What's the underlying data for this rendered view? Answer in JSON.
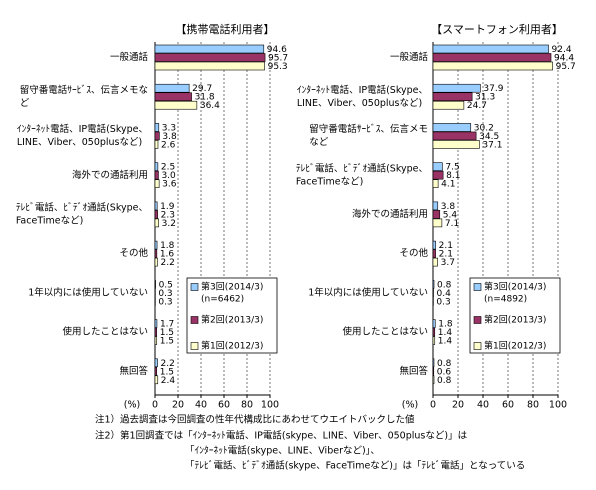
{
  "chart_data": [
    {
      "type": "bar",
      "orientation": "horizontal",
      "title": "【携帯電話利用者】",
      "categories": [
        [
          "一般通話"
        ],
        [
          "留守番電話ｻｰﾋﾞｽ、伝言メモな",
          "ど"
        ],
        [
          "ｲﾝﾀｰﾈｯﾄ電話、IP電話(Skype、",
          "LINE、Viber、050plusなど)"
        ],
        [
          "海外での通話利用"
        ],
        [
          "ﾃﾚﾋﾞ電話、ﾋﾞﾃﾞｵ通話(Skype、",
          "FaceTimeなど)"
        ],
        [
          "その他"
        ],
        [
          "1年以内には使用していない"
        ],
        [
          "使用したことはない"
        ],
        [
          "無回答"
        ]
      ],
      "series": [
        {
          "name": "第3回(2014/3)",
          "color": "#99ccff",
          "values": [
            94.6,
            29.7,
            3.3,
            2.5,
            1.9,
            1.8,
            0.5,
            1.7,
            2.2
          ],
          "value_labels": [
            "94.6",
            "29.7",
            "3.3",
            "2.5",
            "1.9",
            "1.8",
            "0.5",
            "1.7",
            "2.2"
          ]
        },
        {
          "name": "第2回(2013/3)",
          "color": "#993366",
          "values": [
            95.7,
            31.8,
            3.8,
            3.0,
            2.3,
            1.6,
            0.3,
            1.5,
            1.5
          ],
          "value_labels": [
            "95.7",
            "31.8",
            "3.8",
            "3.0",
            "2.3",
            "1.6",
            "0.3",
            "1.5",
            "1.5"
          ]
        },
        {
          "name": "第1回(2012/3)",
          "color": "#ffffcc",
          "values": [
            95.3,
            36.4,
            2.6,
            3.6,
            3.2,
            2.2,
            0.3,
            1.5,
            2.4
          ],
          "value_labels": [
            "95.3",
            "36.4",
            "2.6",
            "3.6",
            "3.2",
            "2.2",
            "0.3",
            "1.5",
            "2.4"
          ]
        }
      ],
      "n_label": "(n=6462)",
      "axis_label": "(%)",
      "xlim": [
        0,
        100
      ],
      "xticks": [
        0,
        20,
        40,
        60,
        80,
        100
      ],
      "grid": true
    },
    {
      "type": "bar",
      "orientation": "horizontal",
      "title": "【スマートフォン利用者】",
      "categories": [
        [
          "一般通話"
        ],
        [
          "ｲﾝﾀｰﾈｯﾄ電話、IP電話(Skype、",
          "LINE、Viber、050plusなど)"
        ],
        [
          "留守番電話ｻｰﾋﾞｽ、伝言メモ",
          "など"
        ],
        [
          "ﾃﾚﾋﾞ電話、ﾋﾞﾃﾞｵ通話(Skype、",
          "FaceTimeなど)"
        ],
        [
          "海外での通話利用"
        ],
        [
          "その他"
        ],
        [
          "1年以内には使用していない"
        ],
        [
          "使用したことはない"
        ],
        [
          "無回答"
        ]
      ],
      "series": [
        {
          "name": "第3回(2014/3)",
          "color": "#99ccff",
          "values": [
            92.4,
            37.9,
            30.2,
            7.5,
            3.8,
            2.1,
            0.8,
            1.8,
            0.8
          ],
          "value_labels": [
            "92.4",
            "37.9",
            "30.2",
            "7.5",
            "3.8",
            "2.1",
            "0.8",
            "1.8",
            "0.8"
          ]
        },
        {
          "name": "第2回(2013/3)",
          "color": "#993366",
          "values": [
            94.4,
            31.3,
            34.5,
            8.1,
            5.4,
            2.1,
            0.4,
            1.4,
            0.6
          ],
          "value_labels": [
            "94.4",
            "31.3",
            "34.5",
            "8.1",
            "5.4",
            "2.1",
            "0.4",
            "1.4",
            "0.6"
          ]
        },
        {
          "name": "第1回(2012/3)",
          "color": "#ffffcc",
          "values": [
            95.7,
            24.7,
            37.1,
            4.1,
            7.1,
            3.7,
            0.3,
            1.4,
            0.8
          ],
          "value_labels": [
            "95.7",
            "24.7",
            "37.1",
            "4.1",
            "7.1",
            "3.7",
            "0.3",
            "1.4",
            "0.8"
          ]
        }
      ],
      "n_label": "(n=4892)",
      "axis_label": "(%)",
      "xlim": [
        0,
        100
      ],
      "xticks": [
        0,
        20,
        40,
        60,
        80,
        100
      ],
      "grid": true
    }
  ],
  "notes": [
    "注1）過去調査は今回調査の性年代構成比にあわせてウエイトバックした値",
    "注2）第1回調査では「ｲﾝﾀｰﾈｯﾄ電話、IP電話(skype、LINE、Viber、050plusなど)」は",
    "「ｲﾝﾀｰﾈｯﾄ電話(skype、LINE、Viberなど)」、",
    "「ﾃﾚﾋﾞ電話、ﾋﾞﾃﾞｵ通話(skype、FaceTimeなど)」は「ﾃﾚﾋﾞ電話」となっている"
  ]
}
